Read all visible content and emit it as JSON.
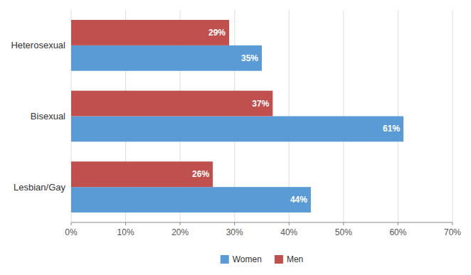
{
  "chart_data": {
    "type": "bar",
    "orientation": "horizontal",
    "categories": [
      "Heterosexual",
      "Bisexual",
      "Lesbian/Gay"
    ],
    "series": [
      {
        "name": "Women",
        "color": "#5B9BD5",
        "values": [
          35,
          61,
          44
        ],
        "value_labels": [
          "35%",
          "61%",
          "44%"
        ]
      },
      {
        "name": "Men",
        "color": "#C0504D",
        "values": [
          29,
          37,
          26
        ],
        "value_labels": [
          "29%",
          "37%",
          "26%"
        ]
      }
    ],
    "xlim": [
      0,
      70
    ],
    "xticks": [
      {
        "value": 0,
        "label": "0%"
      },
      {
        "value": 10,
        "label": "10%"
      },
      {
        "value": 20,
        "label": "20%"
      },
      {
        "value": 30,
        "label": "30%"
      },
      {
        "value": 40,
        "label": "40%"
      },
      {
        "value": 50,
        "label": "50%"
      },
      {
        "value": 60,
        "label": "60%"
      },
      {
        "value": 70,
        "label": "70%"
      }
    ],
    "grid": true,
    "data_labels": true,
    "legend": "bottom"
  }
}
